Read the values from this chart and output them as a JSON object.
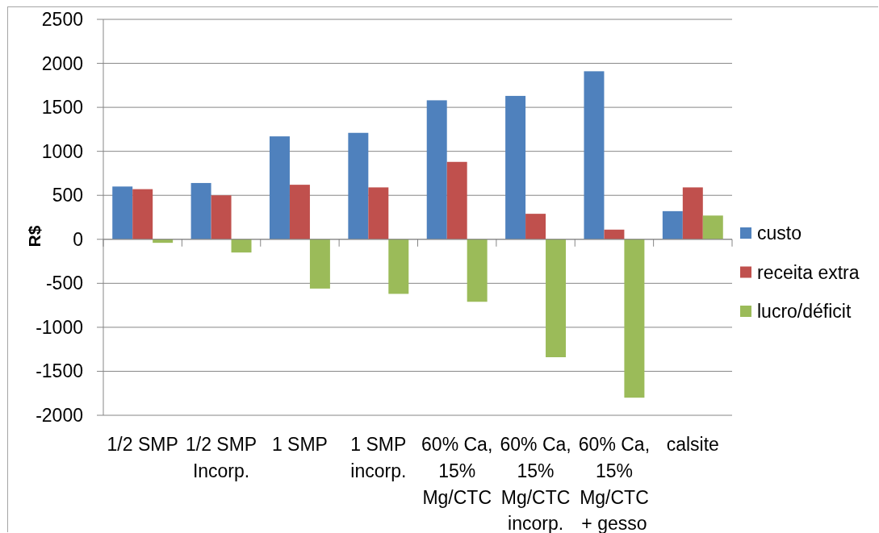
{
  "chart_data": {
    "type": "bar",
    "ylabel": "R$",
    "categories": [
      "1/2 SMP",
      "1/2 SMP Incorp.",
      "1 SMP",
      "1 SMP incorp.",
      "60% Ca, 15% Mg/CTC",
      "60% Ca, 15% Mg/CTC incorp.",
      "60% Ca, 15% Mg/CTC + gesso",
      "calsite"
    ],
    "series": [
      {
        "name": "custo",
        "color": "#4f81bd",
        "values": [
          600,
          640,
          1170,
          1210,
          1580,
          1630,
          1910,
          320
        ]
      },
      {
        "name": "receita extra",
        "color": "#c0504d",
        "values": [
          570,
          500,
          620,
          590,
          880,
          290,
          110,
          590
        ]
      },
      {
        "name": "lucro/déficit",
        "color": "#9bbb59",
        "values": [
          -40,
          -150,
          -560,
          -620,
          -710,
          -1340,
          -1800,
          270
        ]
      }
    ],
    "ylim": [
      -2000,
      2500
    ],
    "yticks": [
      -2000,
      -1500,
      -1000,
      -500,
      0,
      500,
      1000,
      1500,
      2000,
      2500
    ],
    "grid": true,
    "legend": "right"
  }
}
